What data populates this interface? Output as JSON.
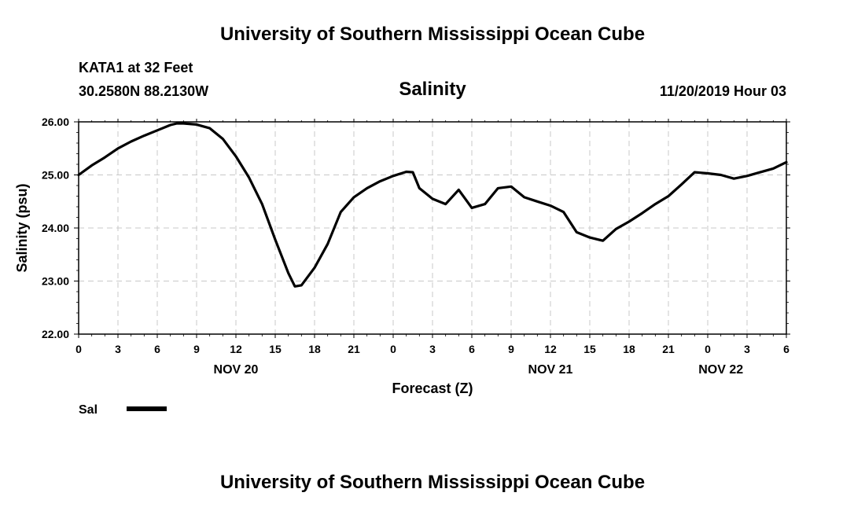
{
  "header": {
    "title_top": "University of Southern Mississippi Ocean Cube",
    "station": "KATA1 at 32 Feet",
    "coords": "30.2580N 88.2130W",
    "subtitle": "Salinity",
    "date": "11/20/2019 Hour 03",
    "title_bottom": "University of Southern Mississippi Ocean Cube"
  },
  "legend": {
    "label": "Sal"
  },
  "chart_data": {
    "type": "line",
    "title": "Salinity",
    "xlabel": "Forecast (Z)",
    "ylabel": "Salinity (psu)",
    "ylim": [
      22.0,
      26.0
    ],
    "xlim_hours": [
      0,
      54
    ],
    "y_ticks": [
      "22.00",
      "23.00",
      "24.00",
      "25.00",
      "26.00"
    ],
    "x_tick_labels": [
      "0",
      "3",
      "6",
      "9",
      "12",
      "15",
      "18",
      "21",
      "0",
      "3",
      "6",
      "9",
      "12",
      "15",
      "18",
      "21",
      "0",
      "3",
      "6"
    ],
    "day_labels": [
      {
        "label": "NOV 20",
        "hour": 12
      },
      {
        "label": "NOV 21",
        "hour": 36
      },
      {
        "label": "NOV 22",
        "hour": 49
      }
    ],
    "grid": true,
    "legend_position": "bottom-left",
    "series": [
      {
        "name": "Sal",
        "color": "#000000",
        "x": [
          0,
          1,
          2,
          3,
          4,
          5,
          6,
          7,
          7.5,
          8,
          9,
          10,
          11,
          12,
          13,
          14,
          15,
          16,
          16.5,
          17,
          18,
          19,
          20,
          21,
          22,
          23,
          24,
          25,
          25.5,
          26,
          27,
          28,
          29,
          30,
          31,
          32,
          33,
          34,
          35,
          36,
          37,
          38,
          39,
          40,
          41,
          42,
          43,
          44,
          45,
          46,
          47,
          48,
          49,
          50,
          51,
          52,
          53,
          54
        ],
        "values": [
          25.0,
          25.18,
          25.33,
          25.5,
          25.63,
          25.74,
          25.84,
          25.94,
          25.97,
          25.97,
          25.95,
          25.88,
          25.68,
          25.35,
          24.95,
          24.45,
          23.78,
          23.15,
          22.9,
          22.92,
          23.25,
          23.7,
          24.3,
          24.58,
          24.75,
          24.88,
          24.98,
          25.06,
          25.05,
          24.75,
          24.55,
          24.45,
          24.72,
          24.38,
          24.45,
          24.75,
          24.78,
          24.58,
          24.5,
          24.42,
          24.3,
          23.92,
          23.82,
          23.76,
          23.98,
          24.12,
          24.28,
          24.45,
          24.6,
          24.82,
          25.05,
          25.03,
          25.0,
          24.93,
          24.98,
          25.05,
          25.12,
          25.24
        ]
      }
    ]
  }
}
